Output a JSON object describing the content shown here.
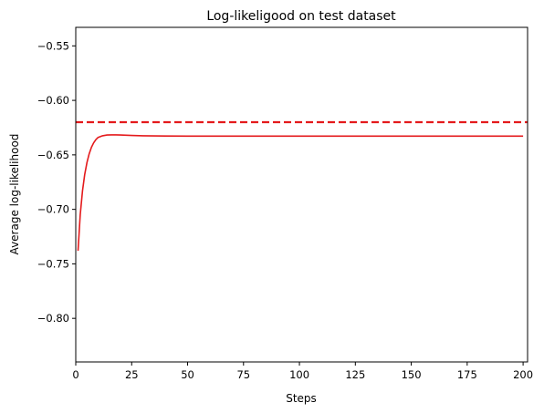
{
  "chart_data": {
    "type": "line",
    "title": "Log-likeligood on test dataset",
    "xlabel": "Steps",
    "ylabel": "Average log-likelihood",
    "xlim": [
      0,
      202
    ],
    "ylim": [
      -0.84,
      -0.533
    ],
    "xticks": [
      0,
      25,
      50,
      75,
      100,
      125,
      150,
      175,
      200
    ],
    "yticks": [
      -0.8,
      -0.75,
      -0.7,
      -0.65,
      -0.6,
      -0.55
    ],
    "ytick_labels": [
      "−0.80",
      "−0.75",
      "−0.70",
      "−0.65",
      "−0.60",
      "−0.55"
    ],
    "grid": false,
    "series": [
      {
        "style": "solid",
        "color": "#e41a1c",
        "x": [
          1,
          2,
          3,
          4,
          5,
          6,
          7,
          8,
          9,
          10,
          12,
          14,
          16,
          18,
          20,
          25,
          30,
          40,
          50,
          75,
          100,
          125,
          150,
          175,
          200
        ],
        "values": [
          -0.738,
          -0.705,
          -0.683,
          -0.668,
          -0.657,
          -0.649,
          -0.643,
          -0.639,
          -0.636,
          -0.634,
          -0.6325,
          -0.6318,
          -0.6316,
          -0.6316,
          -0.6318,
          -0.6322,
          -0.6325,
          -0.6327,
          -0.6328,
          -0.6328,
          -0.6328,
          -0.6328,
          -0.6328,
          -0.6328,
          -0.6328
        ]
      },
      {
        "style": "dashed",
        "color": "#e41a1c",
        "x": [
          0,
          202
        ],
        "values": [
          -0.62,
          -0.62
        ]
      }
    ]
  }
}
